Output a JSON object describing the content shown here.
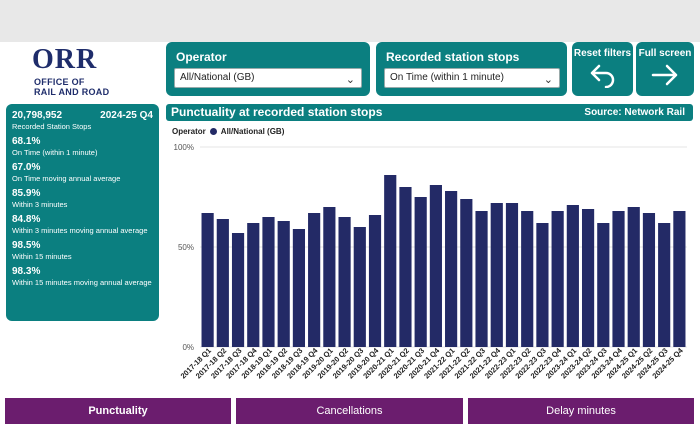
{
  "logo": {
    "mark": "ORR",
    "line1": "OFFICE OF",
    "line2": "RAIL AND ROAD"
  },
  "operator": {
    "title": "Operator",
    "value": "All/National (GB)"
  },
  "stops": {
    "title": "Recorded station stops",
    "value": "On Time (within 1 minute)"
  },
  "buttons": {
    "reset": "Reset filters",
    "fullscreen": "Full screen"
  },
  "stats": {
    "total": "20,798,952",
    "period": "2024-25 Q4",
    "total_label": "Recorded Station Stops",
    "items": [
      {
        "value": "68.1%",
        "label": "On Time (within 1 minute)"
      },
      {
        "value": "67.0%",
        "label": "On Time moving annual average"
      },
      {
        "value": "85.9%",
        "label": "Within 3 minutes"
      },
      {
        "value": "84.8%",
        "label": "Within 3 minutes moving annual average"
      },
      {
        "value": "98.5%",
        "label": "Within 15 minutes"
      },
      {
        "value": "98.3%",
        "label": "Within 15 minutes moving annual average"
      }
    ]
  },
  "chart_header": {
    "title": "Punctuality at recorded station stops",
    "source": "Source: Network Rail"
  },
  "legend": {
    "label": "Operator",
    "series": "All/National (GB)"
  },
  "colors": {
    "teal": "#0b7f80",
    "bar": "#232a66",
    "tab": "#6b1d6e"
  },
  "tabs": [
    "Punctuality",
    "Cancellations",
    "Delay minutes"
  ],
  "chart_data": {
    "type": "bar",
    "categories": [
      "2017-18 Q1",
      "2017-18 Q2",
      "2017-18 Q3",
      "2017-18 Q4",
      "2018-19 Q1",
      "2018-19 Q2",
      "2018-19 Q3",
      "2018-19 Q4",
      "2019-20 Q1",
      "2019-20 Q2",
      "2019-20 Q3",
      "2019-20 Q4",
      "2020-21 Q1",
      "2020-21 Q2",
      "2020-21 Q3",
      "2020-21 Q4",
      "2021-22 Q1",
      "2021-22 Q2",
      "2021-22 Q3",
      "2021-22 Q4",
      "2022-23 Q1",
      "2022-23 Q2",
      "2022-23 Q3",
      "2022-23 Q4",
      "2023-24 Q1",
      "2023-24 Q2",
      "2023-24 Q3",
      "2023-24 Q4",
      "2024-25 Q1",
      "2024-25 Q2",
      "2024-25 Q3",
      "2024-25 Q4"
    ],
    "series": [
      {
        "name": "All/National (GB)",
        "values": [
          67,
          64,
          57,
          62,
          65,
          63,
          59,
          67,
          70,
          65,
          60,
          66,
          86,
          80,
          75,
          81,
          78,
          74,
          68,
          72,
          72,
          68,
          62,
          68,
          71,
          69,
          62,
          68,
          70,
          67,
          62,
          68
        ]
      }
    ],
    "yticks": [
      "0%",
      "50%",
      "100%"
    ],
    "ylim": [
      0,
      100
    ]
  }
}
